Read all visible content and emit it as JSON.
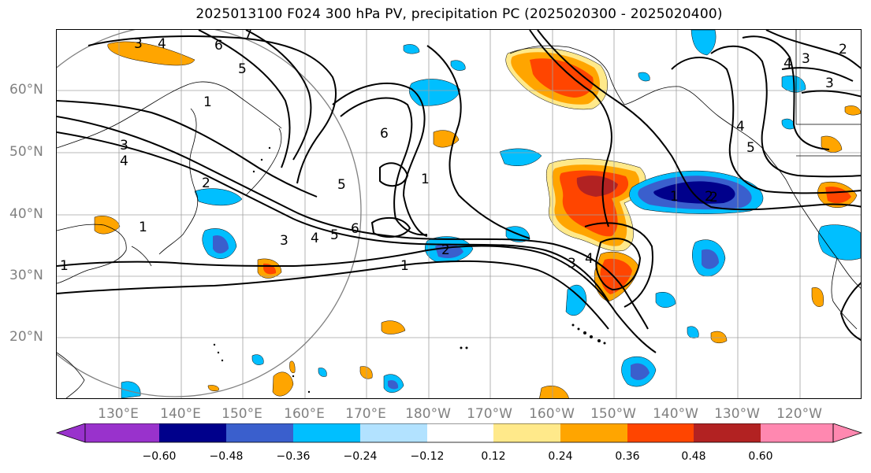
{
  "title": "2025013100 F024 300 hPa PV, precipitation PC (2025020300 - 2025020400)",
  "lat_labels": [
    "60°N",
    "50°N",
    "40°N",
    "30°N",
    "20°N"
  ],
  "lon_labels": [
    "130°E",
    "140°E",
    "150°E",
    "160°E",
    "170°E",
    "180°W",
    "170°W",
    "160°W",
    "150°W",
    "140°W",
    "130°W",
    "120°W"
  ],
  "colorbar": {
    "tick_labels": [
      "−0.60",
      "−0.48",
      "−0.36",
      "−0.24",
      "−0.12",
      "0.12",
      "0.24",
      "0.36",
      "0.48",
      "0.60"
    ],
    "colors": [
      "#9932CC",
      "#00008B",
      "#3A5FCD",
      "#00BFFF",
      "#B2E2FF",
      "#FFFFFF",
      "#FFE98A",
      "#FFA500",
      "#FF4500",
      "#B22222",
      "#FF88B0"
    ]
  },
  "contour_labels": [
    "3",
    "4",
    "6",
    "7",
    "5",
    "1",
    "3",
    "4",
    "2",
    "6",
    "5",
    "1",
    "1",
    "3",
    "4",
    "5",
    "6",
    "2",
    "1",
    "3",
    "4",
    "2",
    "1",
    "4",
    "3",
    "2",
    "3",
    "2",
    "4",
    "5",
    "1"
  ]
}
